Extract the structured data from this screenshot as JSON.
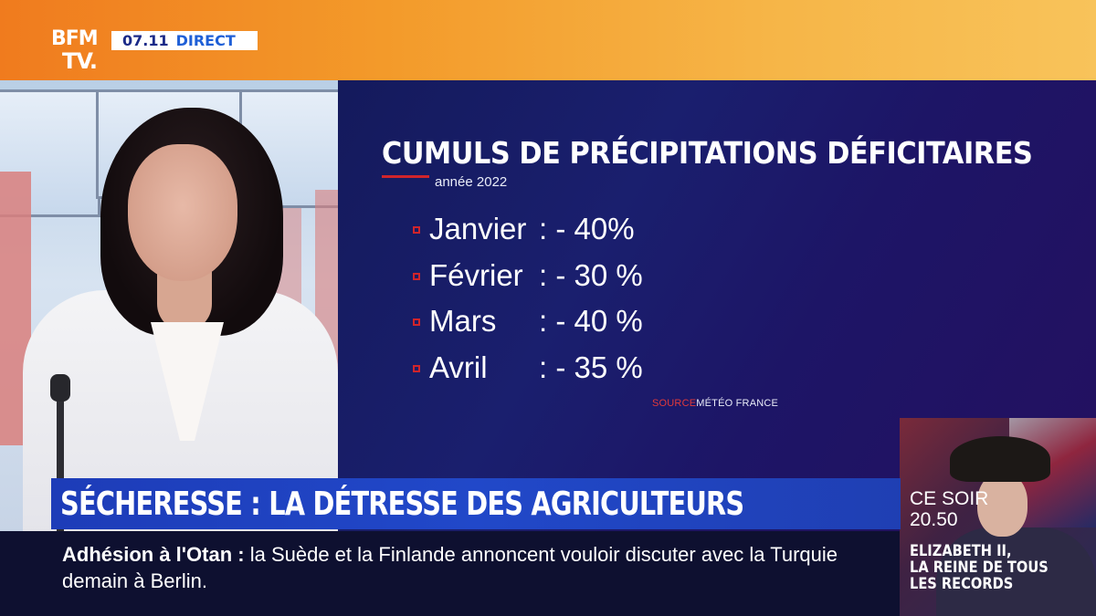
{
  "channel": {
    "logo_line1": "BFM",
    "logo_line2": "TV.",
    "time": "07.11",
    "live_label": "DIRECT"
  },
  "chart_data": {
    "type": "table",
    "title": "CUMULS DE PRÉCIPITATIONS DÉFICITAIRES",
    "subtitle": "année 2022",
    "rows": [
      {
        "month": "Janvier",
        "value_label": ": - 40%",
        "value": -40
      },
      {
        "month": "Février",
        "value_label": ": - 30 %",
        "value": -30
      },
      {
        "month": "Mars",
        "value_label": ": - 40 %",
        "value": -40
      },
      {
        "month": "Avril",
        "value_label": ": - 35 %",
        "value": -35
      }
    ],
    "source_label": "SOURCE",
    "source_value": "MÉTÉO FRANCE"
  },
  "headline": "SÉCHERESSE : LA DÉTRESSE DES AGRICULTEURS",
  "ticker": {
    "topic": "Adhésion à l'Otan :",
    "text": "la Suède et la Finlande annoncent vouloir discuter avec la Turquie demain à Berlin."
  },
  "promo": {
    "when": "CE SOIR",
    "time": "20.50",
    "title_line1": "ELIZABETH II,",
    "title_line2": "LA REINE DE TOUS",
    "title_line3": "LES RECORDS"
  },
  "colors": {
    "top_bar": "#f39a2a",
    "panel": "#1a1f6e",
    "headline_bar": "#2148c9",
    "accent_red": "#d0242b"
  }
}
